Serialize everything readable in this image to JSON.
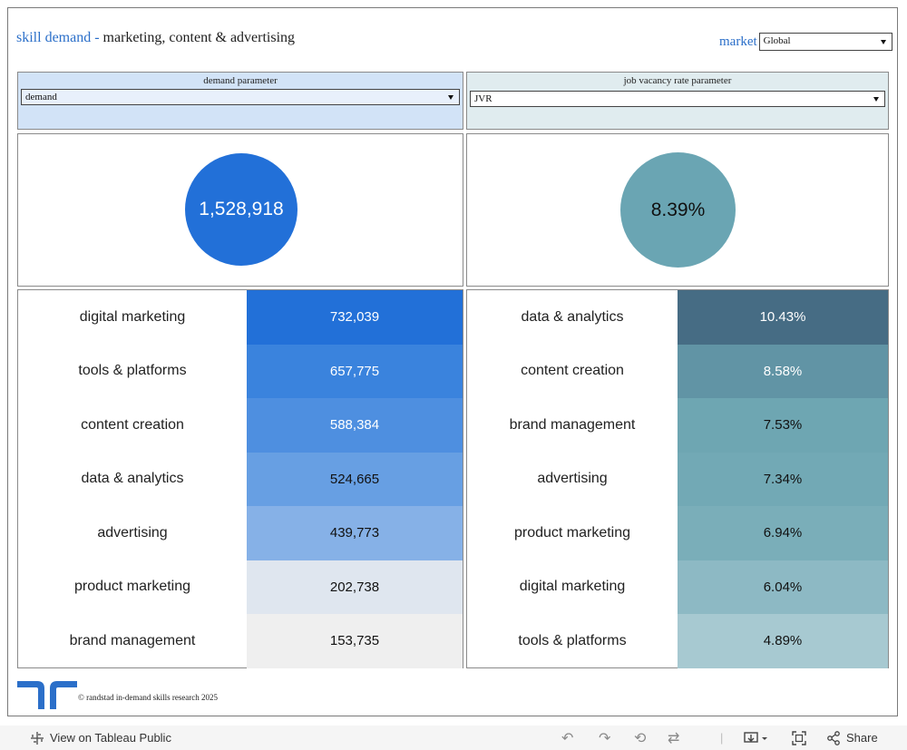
{
  "title": {
    "prefix": "skill demand -",
    "rest": "marketing, content & advertising"
  },
  "market": {
    "label": "market",
    "selected": "Global"
  },
  "demand_param": {
    "label": "demand parameter",
    "selected": "demand"
  },
  "jvr_param": {
    "label": "job vacancy rate parameter",
    "selected": "JVR"
  },
  "demand_kpi": {
    "value": "1,528,918",
    "color": "#2270d8"
  },
  "jvr_kpi": {
    "value": "8.39%",
    "color": "#6aa5b3"
  },
  "demand_rows": [
    {
      "name": "digital marketing",
      "value": "732,039",
      "bg": "#2270d8",
      "fg": "#ffffff"
    },
    {
      "name": "tools & platforms",
      "value": "657,775",
      "bg": "#3a83dd",
      "fg": "#ffffff"
    },
    {
      "name": "content creation",
      "value": "588,384",
      "bg": "#4e8fe0",
      "fg": "#ffffff"
    },
    {
      "name": "data & analytics",
      "value": "524,665",
      "bg": "#679fe3",
      "fg": "#111111"
    },
    {
      "name": "advertising",
      "value": "439,773",
      "bg": "#86b1e7",
      "fg": "#111111"
    },
    {
      "name": "product marketing",
      "value": "202,738",
      "bg": "#dfe6ef",
      "fg": "#111111"
    },
    {
      "name": "brand management",
      "value": "153,735",
      "bg": "#efefef",
      "fg": "#111111"
    }
  ],
  "jvr_rows": [
    {
      "name": "data & analytics",
      "value": "10.43%",
      "bg": "#466c84",
      "fg": "#ffffff"
    },
    {
      "name": "content creation",
      "value": "8.58%",
      "bg": "#6194a5",
      "fg": "#ffffff"
    },
    {
      "name": "brand management",
      "value": "7.53%",
      "bg": "#6ea6b2",
      "fg": "#111111"
    },
    {
      "name": "advertising",
      "value": "7.34%",
      "bg": "#72a9b5",
      "fg": "#111111"
    },
    {
      "name": "product marketing",
      "value": "6.94%",
      "bg": "#7aaeb9",
      "fg": "#111111"
    },
    {
      "name": "digital marketing",
      "value": "6.04%",
      "bg": "#8db9c4",
      "fg": "#111111"
    },
    {
      "name": "tools & platforms",
      "value": "4.89%",
      "bg": "#a7c9d1",
      "fg": "#111111"
    }
  ],
  "footer": {
    "copyright": "© randstad in-demand skills research 2025"
  },
  "toolbar": {
    "view_label": "View on Tableau Public",
    "share_label": "Share"
  }
}
